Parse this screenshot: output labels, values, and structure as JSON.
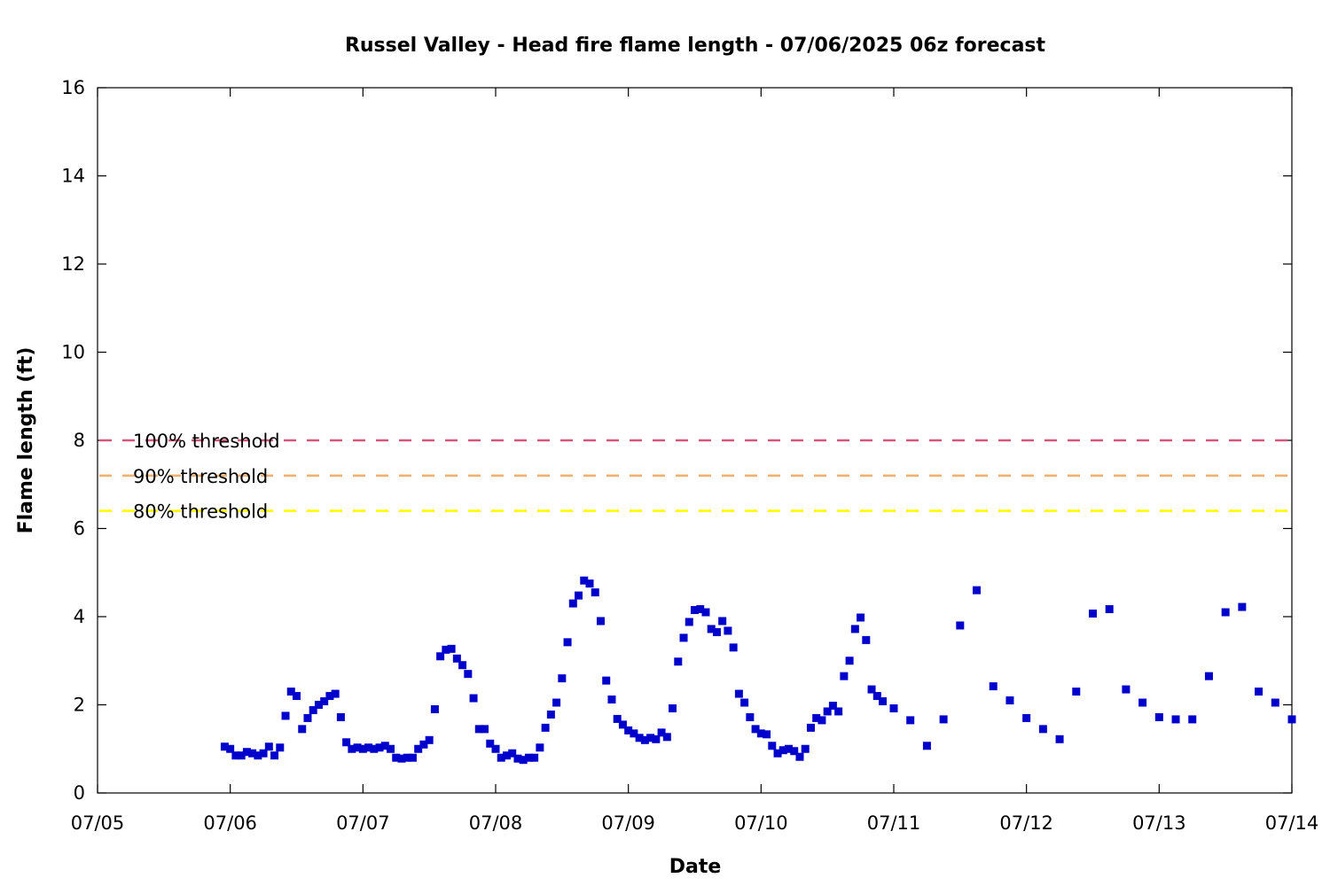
{
  "chart_data": {
    "type": "scatter",
    "title": "Russel Valley - Head fire flame length - 07/06/2025 06z forecast",
    "xlabel": "Date",
    "ylabel": "Flame length (ft)",
    "ylim": [
      0,
      16
    ],
    "xlim": [
      "07/05 00:00",
      "07/14 00:00"
    ],
    "x_ticks": [
      "07/05",
      "07/06",
      "07/07",
      "07/08",
      "07/09",
      "07/10",
      "07/11",
      "07/12",
      "07/13",
      "07/14"
    ],
    "y_ticks": [
      "0",
      "2",
      "4",
      "6",
      "8",
      "10",
      "12",
      "14",
      "16"
    ],
    "grid": false,
    "colors": {
      "points": "#0000cc",
      "t100": "#d4587a",
      "t90": "#f0b070",
      "t80": "#ffff00"
    },
    "thresholds": [
      {
        "label": "100% threshold",
        "value": 8.0,
        "color": "#d4587a"
      },
      {
        "label": "90% threshold",
        "value": 7.2,
        "color": "#f0b070"
      },
      {
        "label": "80% threshold",
        "value": 6.4,
        "color": "#ffff00"
      }
    ],
    "series": [
      {
        "x": [
          "07/05 23:00",
          "07/06 00:00",
          "07/06 01:00",
          "07/06 02:00",
          "07/06 03:00",
          "07/06 04:00",
          "07/06 05:00",
          "07/06 06:00",
          "07/06 07:00",
          "07/06 08:00",
          "07/06 09:00",
          "07/06 10:00",
          "07/06 11:00",
          "07/06 12:00",
          "07/06 13:00",
          "07/06 14:00",
          "07/06 15:00",
          "07/06 16:00",
          "07/06 17:00",
          "07/06 18:00",
          "07/06 19:00",
          "07/06 20:00",
          "07/06 21:00",
          "07/06 22:00",
          "07/06 23:00",
          "07/07 00:00",
          "07/07 01:00",
          "07/07 02:00",
          "07/07 03:00",
          "07/07 04:00",
          "07/07 05:00",
          "07/07 06:00",
          "07/07 07:00",
          "07/07 08:00",
          "07/07 09:00",
          "07/07 10:00",
          "07/07 11:00",
          "07/07 12:00",
          "07/07 13:00",
          "07/07 14:00",
          "07/07 15:00",
          "07/07 16:00",
          "07/07 17:00",
          "07/07 18:00",
          "07/07 19:00",
          "07/07 20:00",
          "07/07 21:00",
          "07/07 22:00",
          "07/07 23:00",
          "07/08 00:00",
          "07/08 01:00",
          "07/08 02:00",
          "07/08 03:00",
          "07/08 04:00",
          "07/08 05:00",
          "07/08 06:00",
          "07/08 07:00",
          "07/08 08:00",
          "07/08 09:00",
          "07/08 10:00",
          "07/08 11:00",
          "07/08 12:00",
          "07/08 13:00",
          "07/08 14:00",
          "07/08 15:00",
          "07/08 16:00",
          "07/08 17:00",
          "07/08 18:00",
          "07/08 19:00",
          "07/08 20:00",
          "07/08 21:00",
          "07/08 22:00",
          "07/08 23:00",
          "07/09 00:00",
          "07/09 01:00",
          "07/09 02:00",
          "07/09 03:00",
          "07/09 04:00",
          "07/09 05:00",
          "07/09 06:00",
          "07/09 07:00",
          "07/09 08:00",
          "07/09 09:00",
          "07/09 10:00",
          "07/09 11:00",
          "07/09 12:00",
          "07/09 13:00",
          "07/09 14:00",
          "07/09 15:00",
          "07/09 16:00",
          "07/09 17:00",
          "07/09 18:00",
          "07/09 19:00",
          "07/09 20:00",
          "07/09 21:00",
          "07/09 22:00",
          "07/09 23:00",
          "07/10 00:00",
          "07/10 01:00",
          "07/10 02:00",
          "07/10 03:00",
          "07/10 04:00",
          "07/10 05:00",
          "07/10 06:00",
          "07/10 07:00",
          "07/10 08:00",
          "07/10 09:00",
          "07/10 10:00",
          "07/10 11:00",
          "07/10 12:00",
          "07/10 13:00",
          "07/10 14:00",
          "07/10 15:00",
          "07/10 16:00",
          "07/10 17:00",
          "07/10 18:00",
          "07/10 19:00",
          "07/10 20:00",
          "07/10 21:00",
          "07/10 22:00",
          "07/11 00:00",
          "07/11 03:00",
          "07/11 06:00",
          "07/11 09:00",
          "07/11 12:00",
          "07/11 15:00",
          "07/11 18:00",
          "07/11 21:00",
          "07/12 00:00",
          "07/12 03:00",
          "07/12 06:00",
          "07/12 09:00",
          "07/12 12:00",
          "07/12 15:00",
          "07/12 18:00",
          "07/12 21:00",
          "07/13 00:00",
          "07/13 03:00",
          "07/13 06:00",
          "07/13 09:00",
          "07/13 12:00",
          "07/13 15:00",
          "07/13 18:00",
          "07/13 21:00",
          "07/14 00:00"
        ],
        "y": [
          1.05,
          1.0,
          0.85,
          0.85,
          0.93,
          0.9,
          0.85,
          0.9,
          1.05,
          0.85,
          1.03,
          1.75,
          2.3,
          2.2,
          1.45,
          1.7,
          1.88,
          2.0,
          2.08,
          2.2,
          2.25,
          1.72,
          1.15,
          1.0,
          1.03,
          1.0,
          1.03,
          1.0,
          1.03,
          1.07,
          1.0,
          0.8,
          0.78,
          0.8,
          0.8,
          1.0,
          1.1,
          1.2,
          1.9,
          3.1,
          3.25,
          3.27,
          3.05,
          2.9,
          2.7,
          2.15,
          1.45,
          1.45,
          1.12,
          1.0,
          0.8,
          0.85,
          0.9,
          0.78,
          0.75,
          0.8,
          0.8,
          1.03,
          1.48,
          1.78,
          2.05,
          2.6,
          3.42,
          4.3,
          4.48,
          4.82,
          4.75,
          4.55,
          3.9,
          2.55,
          2.12,
          1.68,
          1.55,
          1.42,
          1.35,
          1.25,
          1.2,
          1.25,
          1.22,
          1.37,
          1.27,
          1.92,
          2.98,
          3.52,
          3.88,
          4.15,
          4.17,
          4.1,
          3.72,
          3.65,
          3.9,
          3.68,
          3.3,
          2.25,
          2.05,
          1.72,
          1.45,
          1.35,
          1.33,
          1.07,
          0.9,
          0.97,
          1.0,
          0.95,
          0.82,
          1.0,
          1.48,
          1.7,
          1.65,
          1.85,
          1.98,
          1.85,
          2.65,
          3.0,
          3.72,
          3.98,
          3.47,
          2.35,
          2.2,
          2.08,
          1.92,
          1.65,
          1.07,
          1.67,
          3.8,
          4.6,
          2.42,
          2.1,
          1.7,
          1.45,
          1.22,
          2.3,
          4.07,
          4.17,
          2.35,
          2.05,
          1.72,
          1.67,
          1.67,
          2.65,
          4.1,
          4.22,
          2.3,
          2.05,
          1.67
        ]
      }
    ]
  }
}
